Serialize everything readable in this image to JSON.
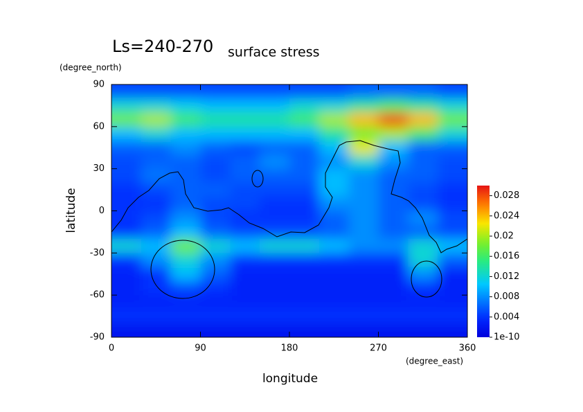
{
  "chart_data": {
    "type": "contourf",
    "title": "Ls=240-270",
    "subtitle": "surface stress",
    "y_unit": "(degree_north)",
    "x_unit": "(degree_east)",
    "y_label": "latitude",
    "x_label": "longitude",
    "colormap": "jet",
    "x": [
      15,
      45,
      75,
      105,
      135,
      165,
      195,
      225,
      255,
      285,
      315,
      345
    ],
    "y": [
      85,
      75,
      65,
      55,
      45,
      35,
      25,
      15,
      5,
      -5,
      -15,
      -25,
      -35,
      -45,
      -55,
      -65,
      -75,
      -85
    ],
    "values": [
      [
        0.005,
        0.005,
        0.005,
        0.005,
        0.005,
        0.005,
        0.005,
        0.005,
        0.006,
        0.006,
        0.006,
        0.005
      ],
      [
        0.012,
        0.012,
        0.011,
        0.01,
        0.01,
        0.01,
        0.012,
        0.012,
        0.014,
        0.016,
        0.014,
        0.012
      ],
      [
        0.018,
        0.02,
        0.016,
        0.014,
        0.014,
        0.014,
        0.016,
        0.02,
        0.024,
        0.028,
        0.024,
        0.018
      ],
      [
        0.01,
        0.012,
        0.01,
        0.01,
        0.01,
        0.01,
        0.01,
        0.014,
        0.018,
        0.02,
        0.016,
        0.012
      ],
      [
        0.006,
        0.006,
        0.008,
        0.006,
        0.005,
        0.006,
        0.006,
        0.01,
        0.022,
        0.01,
        0.006,
        0.006
      ],
      [
        0.005,
        0.006,
        0.006,
        0.005,
        0.006,
        0.008,
        0.006,
        0.008,
        0.012,
        0.008,
        0.006,
        0.005
      ],
      [
        0.005,
        0.007,
        0.006,
        0.005,
        0.006,
        0.006,
        0.006,
        0.01,
        0.008,
        0.006,
        0.006,
        0.005
      ],
      [
        0.004,
        0.005,
        0.006,
        0.006,
        0.005,
        0.005,
        0.005,
        0.01,
        0.008,
        0.006,
        0.005,
        0.004
      ],
      [
        0.004,
        0.004,
        0.006,
        0.005,
        0.005,
        0.004,
        0.004,
        0.008,
        0.008,
        0.006,
        0.005,
        0.004
      ],
      [
        0.004,
        0.005,
        0.008,
        0.005,
        0.004,
        0.004,
        0.004,
        0.006,
        0.008,
        0.006,
        0.008,
        0.005
      ],
      [
        0.004,
        0.006,
        0.01,
        0.006,
        0.005,
        0.005,
        0.005,
        0.006,
        0.008,
        0.006,
        0.006,
        0.005
      ],
      [
        0.012,
        0.01,
        0.018,
        0.012,
        0.01,
        0.012,
        0.012,
        0.01,
        0.008,
        0.008,
        0.012,
        0.01
      ],
      [
        0.004,
        0.008,
        0.012,
        0.008,
        0.004,
        0.004,
        0.004,
        0.004,
        0.004,
        0.004,
        0.012,
        0.006
      ],
      [
        0.003,
        0.004,
        0.01,
        0.006,
        0.003,
        0.003,
        0.003,
        0.003,
        0.003,
        0.003,
        0.008,
        0.003
      ],
      [
        0.003,
        0.004,
        0.005,
        0.004,
        0.003,
        0.003,
        0.003,
        0.003,
        0.003,
        0.003,
        0.004,
        0.003
      ],
      [
        0.003,
        0.003,
        0.003,
        0.003,
        0.003,
        0.003,
        0.003,
        0.003,
        0.003,
        0.003,
        0.003,
        0.003
      ],
      [
        0.004,
        0.004,
        0.004,
        0.004,
        0.004,
        0.004,
        0.004,
        0.004,
        0.004,
        0.004,
        0.004,
        0.004
      ],
      [
        0.002,
        0.002,
        0.002,
        0.002,
        0.002,
        0.002,
        0.002,
        0.002,
        0.002,
        0.002,
        0.002,
        0.002
      ]
    ],
    "xlim": [
      0,
      360
    ],
    "xticks": [
      0,
      90,
      180,
      270,
      360
    ],
    "ylim": [
      -90,
      90
    ],
    "yticks": [
      -90,
      -60,
      -30,
      0,
      30,
      60,
      90
    ],
    "clim": [
      1e-10,
      0.03
    ],
    "cticks": [
      {
        "value": 1e-10,
        "label": "1e-10"
      },
      0.004,
      0.008,
      0.012,
      0.016,
      0.02,
      0.024,
      0.028
    ]
  }
}
